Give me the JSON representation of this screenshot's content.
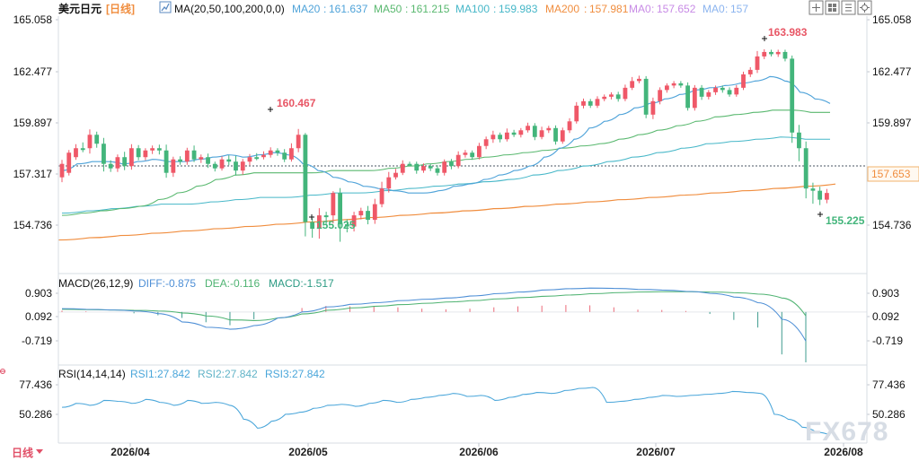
{
  "window": {
    "symbol": "美元日元",
    "period": "[日线]"
  },
  "top_controls": {
    "icons": [
      "plus-box-icon",
      "grid-icon",
      "bars-icon",
      "settings-icon"
    ]
  },
  "bottom_controls": {
    "period_label": "日线",
    "period_icon": "selector-icon"
  },
  "watermark": "FX678",
  "chart_data": [
    {
      "type": "candlestick",
      "title": "美元日元 [日线]",
      "x_tick_labels": [
        "2026/04",
        "2026/05",
        "2026/06",
        "2026/07",
        "2026/08"
      ],
      "ylim": [
        154.0,
        165.5
      ],
      "y_tick_labels_left": [
        "165.058",
        "162.477",
        "159.897",
        "157.317",
        "154.736"
      ],
      "y_tick_labels_right": [
        "165.058",
        "162.477",
        "159.897",
        "157.317",
        "154.736"
      ],
      "indicator_text": "MA(20,50,100,200,0,0)",
      "legend": [
        {
          "label": "MA20",
          "value": "161.637",
          "color": "#4fa3d9"
        },
        {
          "label": "MA50",
          "value": "161.215",
          "color": "#59b86f"
        },
        {
          "label": "MA100",
          "value": "159.983",
          "color": "#46b7c8"
        },
        {
          "label": "MA200",
          "value": "157.981",
          "color": "#f08d3e"
        },
        {
          "label": "MA0",
          "value": "157.652",
          "color": "#c88be6"
        },
        {
          "label": "MA0",
          "value": "157",
          "color": "#8bb4ef"
        }
      ],
      "current_price": "157.653",
      "annotations": [
        {
          "label": "160.467",
          "type": "high"
        },
        {
          "label": "155.025",
          "type": "low"
        },
        {
          "label": "163.983",
          "type": "high"
        },
        {
          "label": "155.225",
          "type": "low"
        }
      ],
      "candles": [
        [
          158.3,
          158.9,
          0.18,
          0.22,
          1
        ],
        [
          158.5,
          159.4,
          0.12,
          0.12,
          1
        ],
        [
          159.2,
          159.6,
          0.18,
          0.12,
          1
        ],
        [
          159.6,
          159.6,
          0.26,
          0.18,
          0
        ],
        [
          159.6,
          160.2,
          0.24,
          0.24,
          1
        ],
        [
          160.2,
          159.8,
          0.14,
          0.18,
          0
        ],
        [
          159.8,
          158.9,
          0.26,
          0.34,
          0
        ],
        [
          158.9,
          158.7,
          0.16,
          0.16,
          0
        ],
        [
          158.7,
          159.2,
          0.12,
          0.16,
          1
        ],
        [
          159.2,
          158.8,
          0.24,
          0.18,
          0
        ],
        [
          158.8,
          159.6,
          0.18,
          0.16,
          1
        ],
        [
          159.6,
          159.2,
          0.14,
          0.14,
          0
        ],
        [
          159.2,
          159.5,
          0.1,
          0.14,
          1
        ],
        [
          159.5,
          159.6,
          0.12,
          0.16,
          1
        ],
        [
          159.6,
          159.5,
          0.16,
          0.18,
          0
        ],
        [
          159.5,
          158.5,
          0.26,
          0.22,
          0
        ],
        [
          158.5,
          159.1,
          0.12,
          0.18,
          1
        ],
        [
          159.1,
          159.0,
          0.14,
          0.14,
          0
        ],
        [
          159.0,
          159.5,
          0.12,
          0.14,
          1
        ],
        [
          159.5,
          159.1,
          0.22,
          0.12,
          0
        ],
        [
          159.1,
          159.2,
          0.12,
          0.16,
          1
        ],
        [
          159.2,
          158.9,
          0.16,
          0.18,
          0
        ],
        [
          158.9,
          158.7,
          0.1,
          0.14,
          0
        ],
        [
          158.7,
          159.1,
          0.14,
          0.1,
          1
        ],
        [
          159.1,
          159.0,
          0.18,
          0.16,
          0
        ],
        [
          159.0,
          158.6,
          0.26,
          0.22,
          0
        ],
        [
          158.6,
          159.0,
          0.12,
          0.18,
          1
        ],
        [
          159.0,
          159.2,
          0.14,
          0.16,
          1
        ],
        [
          159.2,
          159.2,
          0.18,
          0.14,
          0
        ],
        [
          159.2,
          159.3,
          0.16,
          0.1,
          1
        ],
        [
          159.3,
          159.5,
          0.14,
          0.12,
          1
        ],
        [
          159.5,
          159.4,
          0.1,
          0.14,
          0
        ],
        [
          159.4,
          159.1,
          0.16,
          0.12,
          0
        ],
        [
          159.1,
          159.6,
          0.22,
          0.1,
          1
        ],
        [
          159.6,
          160.2,
          0.26,
          0.18,
          1
        ],
        [
          160.2,
          156.3,
          0.08,
          0.64,
          0
        ],
        [
          156.3,
          156.0,
          0.16,
          0.4,
          0
        ],
        [
          156.0,
          156.6,
          0.32,
          0.44,
          1
        ],
        [
          156.6,
          156.6,
          0.16,
          0.38,
          0
        ],
        [
          156.6,
          157.6,
          0.08,
          0.36,
          1
        ],
        [
          157.6,
          156.2,
          0.22,
          0.78,
          0
        ],
        [
          156.2,
          156.1,
          0.22,
          0.26,
          0
        ],
        [
          156.1,
          156.6,
          0.16,
          0.22,
          1
        ],
        [
          156.6,
          156.8,
          0.14,
          0.18,
          1
        ],
        [
          156.8,
          156.4,
          0.22,
          0.2,
          0
        ],
        [
          156.4,
          157.1,
          0.24,
          0.18,
          1
        ],
        [
          157.1,
          157.8,
          0.3,
          0.14,
          1
        ],
        [
          157.8,
          158.3,
          0.24,
          0.18,
          1
        ],
        [
          158.3,
          158.5,
          0.18,
          0.1,
          1
        ],
        [
          158.5,
          158.9,
          0.16,
          0.1,
          1
        ],
        [
          158.9,
          158.9,
          0.1,
          0.1,
          0
        ],
        [
          158.9,
          158.6,
          0.1,
          0.14,
          0
        ],
        [
          158.6,
          158.8,
          0.12,
          0.1,
          1
        ],
        [
          158.8,
          158.7,
          0.1,
          0.12,
          0
        ],
        [
          158.7,
          158.5,
          0.14,
          0.12,
          0
        ],
        [
          158.5,
          159.0,
          0.1,
          0.12,
          1
        ],
        [
          159.0,
          158.8,
          0.12,
          0.14,
          0
        ],
        [
          158.8,
          159.3,
          0.16,
          0.1,
          1
        ],
        [
          159.3,
          159.4,
          0.12,
          0.12,
          1
        ],
        [
          159.4,
          159.2,
          0.1,
          0.12,
          0
        ],
        [
          159.2,
          159.7,
          0.14,
          0.1,
          1
        ],
        [
          159.7,
          160.0,
          0.12,
          0.14,
          1
        ],
        [
          160.0,
          160.2,
          0.18,
          0.16,
          1
        ],
        [
          160.2,
          160.0,
          0.1,
          0.14,
          0
        ],
        [
          160.0,
          160.3,
          0.18,
          0.1,
          1
        ],
        [
          160.3,
          160.2,
          0.12,
          0.1,
          0
        ],
        [
          160.2,
          160.4,
          0.1,
          0.12,
          1
        ],
        [
          160.4,
          160.6,
          0.14,
          0.1,
          1
        ],
        [
          160.6,
          160.1,
          0.12,
          0.14,
          0
        ],
        [
          160.1,
          160.4,
          0.16,
          0.1,
          1
        ],
        [
          160.4,
          160.5,
          0.1,
          0.12,
          1
        ],
        [
          160.5,
          159.9,
          0.12,
          0.14,
          0
        ],
        [
          159.9,
          160.4,
          0.12,
          0.1,
          1
        ],
        [
          160.4,
          160.8,
          0.14,
          0.12,
          1
        ],
        [
          160.8,
          161.5,
          0.16,
          0.1,
          1
        ],
        [
          161.5,
          161.7,
          0.12,
          0.12,
          1
        ],
        [
          161.7,
          161.5,
          0.1,
          0.1,
          0
        ],
        [
          161.5,
          161.8,
          0.12,
          0.1,
          1
        ],
        [
          161.8,
          161.9,
          0.1,
          0.1,
          1
        ],
        [
          161.9,
          162.0,
          0.1,
          0.12,
          1
        ],
        [
          162.0,
          161.8,
          0.12,
          0.12,
          0
        ],
        [
          161.8,
          162.3,
          0.14,
          0.1,
          1
        ],
        [
          162.3,
          162.6,
          0.18,
          0.1,
          1
        ],
        [
          162.6,
          162.7,
          0.14,
          0.1,
          1
        ],
        [
          162.7,
          161.1,
          0.12,
          0.16,
          0
        ],
        [
          161.1,
          161.7,
          0.16,
          0.2,
          1
        ],
        [
          161.7,
          162.2,
          0.12,
          0.14,
          1
        ],
        [
          162.2,
          162.4,
          0.1,
          0.12,
          1
        ],
        [
          162.4,
          162.5,
          0.1,
          0.12,
          1
        ],
        [
          162.5,
          162.4,
          0.1,
          0.1,
          0
        ],
        [
          162.4,
          161.4,
          0.14,
          0.12,
          0
        ],
        [
          161.4,
          162.3,
          0.12,
          0.12,
          1
        ],
        [
          162.3,
          161.9,
          0.12,
          0.14,
          0
        ],
        [
          161.9,
          162.1,
          0.1,
          0.12,
          1
        ],
        [
          162.1,
          162.3,
          0.1,
          0.12,
          1
        ],
        [
          162.3,
          162.2,
          0.1,
          0.12,
          0
        ],
        [
          162.2,
          162.0,
          0.12,
          0.1,
          0
        ],
        [
          162.0,
          162.3,
          0.12,
          0.1,
          1
        ],
        [
          162.3,
          162.9,
          0.12,
          0.1,
          1
        ],
        [
          162.9,
          163.1,
          0.12,
          0.12,
          1
        ],
        [
          163.1,
          163.7,
          0.24,
          0.14,
          1
        ],
        [
          163.7,
          163.9,
          0.12,
          0.12,
          1
        ],
        [
          163.9,
          163.8,
          0.1,
          0.1,
          0
        ],
        [
          163.8,
          163.9,
          0.1,
          0.12,
          1
        ],
        [
          163.9,
          163.6,
          0.1,
          0.12,
          0
        ],
        [
          163.6,
          160.3,
          0.14,
          0.46,
          0
        ],
        [
          160.3,
          159.6,
          0.34,
          0.58,
          0
        ],
        [
          159.6,
          157.8,
          0.3,
          0.44,
          0
        ],
        [
          157.8,
          157.7,
          0.26,
          0.58,
          0
        ],
        [
          157.7,
          157.3,
          0.18,
          0.24,
          0
        ],
        [
          157.3,
          157.6,
          0.18,
          0.16,
          1
        ]
      ],
      "ma20": [
        158.6,
        158.9,
        159.0,
        159.0,
        158.9,
        159.0,
        159.1,
        159.0,
        159.0,
        159.1,
        159.2,
        159.3,
        159.2,
        159.3,
        159.4,
        159.3,
        158.9,
        158.6,
        158.3,
        158.1,
        157.9,
        157.8,
        157.7,
        157.6,
        157.6,
        157.7,
        157.9,
        158.0,
        158.2,
        158.4,
        158.6,
        158.8,
        159.2,
        159.6,
        160.0,
        160.5,
        160.8,
        161.1,
        161.4,
        161.6,
        161.8,
        162.0,
        162.2,
        162.3,
        162.4,
        162.5,
        162.6,
        162.8,
        162.6,
        162.1,
        161.8,
        161.6
      ],
      "ma50": [
        156.6,
        156.7,
        156.8,
        156.9,
        157.0,
        157.3,
        157.6,
        157.9,
        158.2,
        158.4,
        158.5,
        158.5,
        158.5,
        158.5,
        158.6,
        158.6,
        158.6,
        158.7,
        158.8,
        158.9,
        159.0,
        159.1,
        159.2,
        159.3,
        159.4,
        159.5,
        159.6,
        159.7,
        159.8,
        160.0,
        160.2,
        160.4,
        160.6,
        160.8,
        161.0,
        161.1,
        161.2,
        161.3,
        161.3,
        161.2,
        161.2
      ],
      "ma100": [
        156.7,
        156.8,
        156.9,
        157.0,
        157.1,
        157.1,
        157.2,
        157.3,
        157.4,
        157.4,
        157.5,
        157.6,
        157.6,
        157.7,
        157.8,
        157.9,
        158.0,
        158.1,
        158.2,
        158.4,
        158.6,
        158.8,
        159.0,
        159.2,
        159.4,
        159.6,
        159.8,
        159.9,
        160.0,
        160.1,
        160.0,
        160.0
      ],
      "ma200": [
        155.5,
        155.6,
        155.7,
        155.8,
        155.9,
        156.0,
        156.1,
        156.2,
        156.3,
        156.4,
        156.5,
        156.6,
        156.7,
        156.8,
        156.9,
        157.0,
        157.1,
        157.2,
        157.3,
        157.4,
        157.5,
        157.6,
        157.7,
        157.8,
        157.9,
        158.0
      ]
    },
    {
      "type": "macd",
      "title": "MACD(26,12,9)",
      "labels": [
        {
          "label": "DIFF",
          "value": "-0.875",
          "color": "#4e8fd6"
        },
        {
          "label": "DEA",
          "value": "-0.116",
          "color": "#4fb372"
        },
        {
          "label": "MACD",
          "value": "-1.517",
          "color": "#2d9b84"
        }
      ],
      "ylim": [
        -1.6,
        1.05
      ],
      "y_tick_labels_left": [
        "0.903",
        "0.092",
        "-0.719"
      ],
      "y_tick_labels_right": [
        "0.903",
        "0.092",
        "-0.719"
      ],
      "diff": [
        0.1,
        0.08,
        0.06,
        0.03,
        -0.05,
        -0.3,
        -0.46,
        -0.52,
        -0.41,
        -0.18,
        0.0,
        0.15,
        0.23,
        0.28,
        0.34,
        0.38,
        0.42,
        0.48,
        0.55,
        0.6,
        0.66,
        0.7,
        0.72,
        0.71,
        0.68,
        0.66,
        0.62,
        0.56,
        0.45,
        0.28,
        -0.22,
        -0.88
      ],
      "dea": [
        0.08,
        0.07,
        0.06,
        0.05,
        0.03,
        -0.03,
        -0.12,
        -0.24,
        -0.26,
        -0.18,
        -0.06,
        0.05,
        0.12,
        0.17,
        0.22,
        0.26,
        0.3,
        0.34,
        0.39,
        0.43,
        0.47,
        0.51,
        0.55,
        0.58,
        0.6,
        0.61,
        0.61,
        0.6,
        0.58,
        0.54,
        0.42,
        -0.12
      ],
      "hist": [
        0.04,
        0.02,
        0.0,
        -0.04,
        -0.1,
        -0.18,
        -0.31,
        -0.4,
        -0.22,
        0.0,
        0.12,
        0.18,
        0.17,
        0.16,
        0.14,
        0.1,
        0.08,
        0.1,
        0.14,
        0.17,
        0.19,
        0.21,
        0.2,
        0.14,
        0.07,
        0.06,
        0.03,
        -0.06,
        -0.24,
        -0.47,
        -1.28,
        -1.52
      ]
    },
    {
      "type": "rsi",
      "title": "RSI(14,14,14)",
      "labels": [
        {
          "label": "RSI1",
          "value": "27.842",
          "color": "#4aa6da"
        },
        {
          "label": "RSI2",
          "value": "27.842",
          "color": "#61b3c7"
        },
        {
          "label": "RSI3",
          "value": "27.842",
          "color": "#4aa6da"
        }
      ],
      "ylim": [
        20,
        95
      ],
      "y_tick_labels_left": [
        "77.436",
        "50.286"
      ],
      "y_tick_labels_right": [
        "77.436",
        "50.286"
      ],
      "rsi": [
        56,
        60,
        58,
        63,
        62,
        60,
        64,
        61,
        58,
        63,
        60,
        61,
        58,
        44,
        35,
        42,
        49,
        51,
        55,
        58,
        59,
        57,
        60,
        63,
        61,
        64,
        66,
        68,
        70,
        67,
        68,
        63,
        66,
        69,
        71,
        70,
        73,
        75,
        76,
        61,
        62,
        64,
        66,
        68,
        67,
        68,
        69,
        70,
        72,
        71,
        70,
        49,
        44,
        36,
        31,
        28
      ]
    }
  ]
}
